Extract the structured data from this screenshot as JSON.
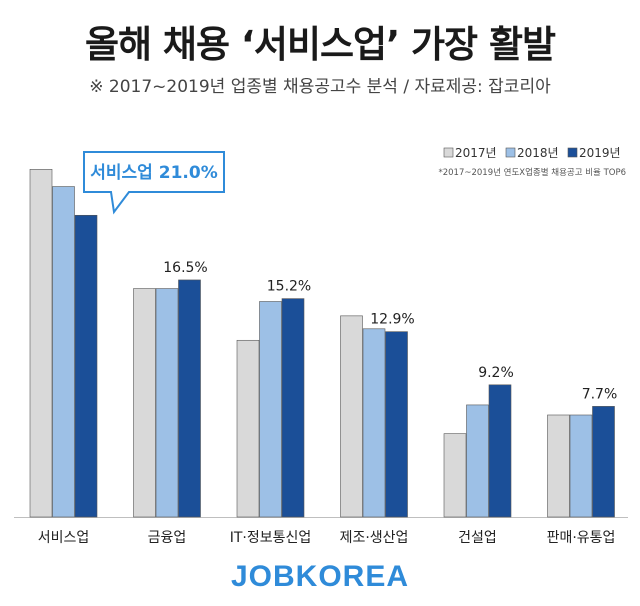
{
  "header": {
    "title": "올해 채용 ‘서비스업’ 가장 활발",
    "subtitle": "※ 2017~2019년 업종별 채용공고수 분석 / 자료제공: 잡코리아"
  },
  "footer": {
    "logo": "JOBKOREA"
  },
  "colors": {
    "y2017": "#d9d9d9",
    "y2018": "#9dc0e6",
    "y2019": "#1b4f98",
    "accent": "#2f8bd9"
  },
  "chart_data": {
    "type": "bar",
    "note": "*2017~2019년 연도X업종별 채용공고 비율 TOP6",
    "categories": [
      "서비스업",
      "금융업",
      "IT·정보통신업",
      "제조·생산업",
      "건설업",
      "판매·유통업"
    ],
    "series": [
      {
        "name": "2017년",
        "values": [
          24.2,
          15.9,
          12.3,
          14.0,
          5.8,
          7.1
        ]
      },
      {
        "name": "2018년",
        "values": [
          23.0,
          15.9,
          15.0,
          13.1,
          7.8,
          7.1
        ]
      },
      {
        "name": "2019년",
        "values": [
          21.0,
          16.5,
          15.2,
          12.9,
          9.2,
          7.7
        ]
      }
    ],
    "data_labels": [
      "21.0%",
      "16.5%",
      "15.2%",
      "12.9%",
      "9.2%",
      "7.7%"
    ],
    "callout": "서비스업 21.0%",
    "legend_position": "top-right",
    "ylim": [
      0,
      24.5
    ],
    "grid": false
  }
}
